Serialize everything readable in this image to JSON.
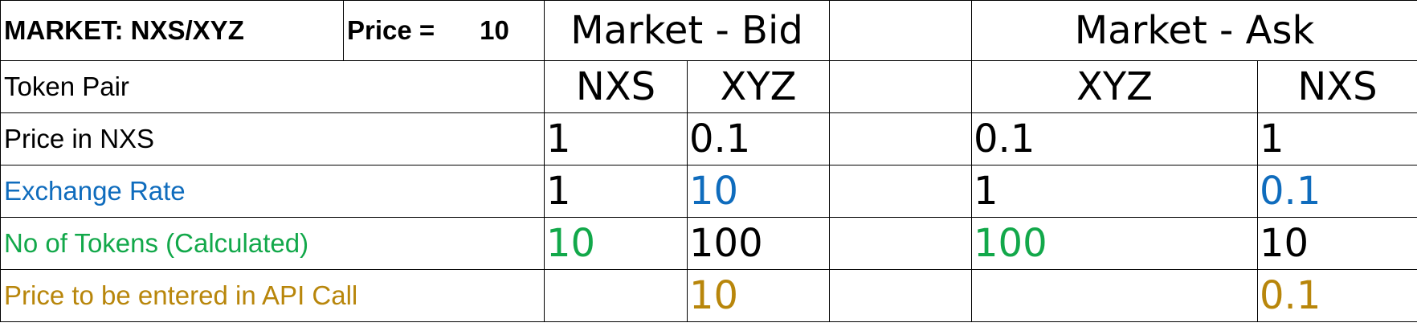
{
  "header": {
    "market": "MARKET: NXS/XYZ",
    "price_label": "Price =",
    "price_value": "10",
    "bid_title": "Market - Bid",
    "ask_title": "Market - Ask"
  },
  "rows": {
    "token_pair": {
      "label": "Token Pair",
      "bid": [
        "NXS",
        "XYZ"
      ],
      "ask": [
        "XYZ",
        "NXS"
      ]
    },
    "price_in_nxs": {
      "label": "Price in NXS",
      "bid": [
        "1",
        "0.1"
      ],
      "ask": [
        "0.1",
        "1"
      ]
    },
    "exchange_rate": {
      "label": "Exchange Rate",
      "bid": [
        "1",
        "10"
      ],
      "ask": [
        "1",
        "0.1"
      ]
    },
    "no_of_tokens": {
      "label": "No of Tokens (Calculated)",
      "bid": [
        "10",
        "100"
      ],
      "ask": [
        "100",
        "10"
      ]
    },
    "api_price": {
      "label": "Price to be entered in  API Call",
      "bid": [
        "",
        "10"
      ],
      "ask": [
        "",
        "0.1"
      ]
    }
  },
  "colors": {
    "price_red": "#b00000",
    "exchange_blue": "#0f6cbd",
    "tokens_green": "#12a84a",
    "api_gold": "#b8860b"
  }
}
